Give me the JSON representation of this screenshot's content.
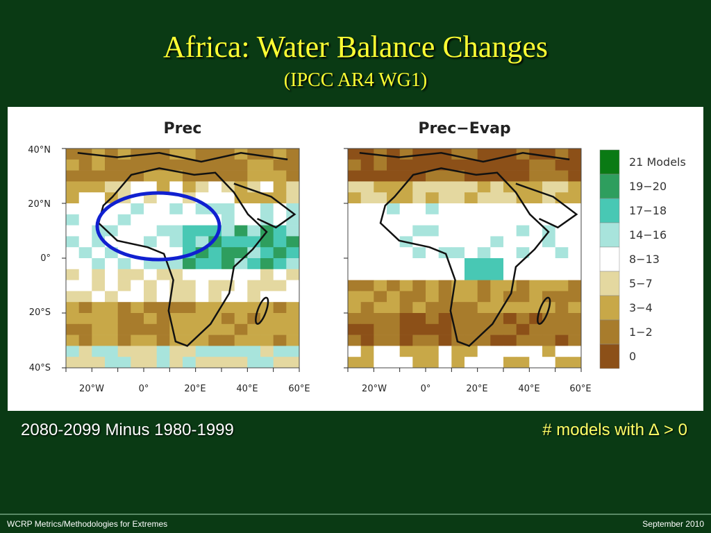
{
  "slide": {
    "title": "Africa:  Water Balance Changes",
    "subtitle": "(IPCC AR4 WG1)",
    "caption_left": "2080-2099 Minus 1980-1999",
    "caption_right": "# models with ∆ > 0",
    "footer_left": "WCRP Metrics/Methodologies for Extremes",
    "footer_right": "September 2010"
  },
  "figure": {
    "panels": [
      {
        "title": "Prec"
      },
      {
        "title": "Prec−Evap"
      }
    ],
    "y_ticks": [
      "40°N",
      "20°N",
      "0°",
      "20°S",
      "40°S"
    ],
    "x_ticks": [
      "20°W",
      "0°",
      "20°E",
      "40°E",
      "60°E"
    ],
    "legend": [
      {
        "label": "21  Models",
        "color": "#0a7a14"
      },
      {
        "label": "19−20",
        "color": "#2e9e5e"
      },
      {
        "label": "17−18",
        "color": "#48c8b4"
      },
      {
        "label": "14−16",
        "color": "#a8e4dc"
      },
      {
        "label": "8−13",
        "color": "#ffffff"
      },
      {
        "label": "5−7",
        "color": "#e4d8a0"
      },
      {
        "label": "3−4",
        "color": "#c8a848"
      },
      {
        "label": "1−2",
        "color": "#a87c2c"
      },
      {
        "label": "0",
        "color": "#8c5018"
      }
    ],
    "highlight_color": "#1020d0"
  }
}
